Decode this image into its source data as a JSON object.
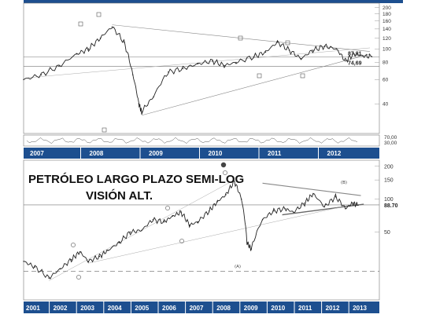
{
  "chart_data": [
    {
      "type": "line",
      "scale": "log",
      "title": "",
      "years": [
        "2007",
        "2008",
        "2009",
        "2010",
        "2011",
        "2012"
      ],
      "ylim": [
        25,
        210
      ],
      "y_ticks": [
        200,
        180,
        160,
        140,
        120,
        100,
        80,
        60,
        40
      ],
      "levels": [
        {
          "label": "87,81",
          "value": 87.81
        },
        {
          "label": "74,69",
          "value": 74.69
        }
      ],
      "oscillator_ticks": [
        "70,00",
        "30,00"
      ],
      "series": [
        {
          "values": [
            {
              "x": 2007.0,
              "y": 60
            },
            {
              "x": 2007.3,
              "y": 65
            },
            {
              "x": 2007.6,
              "y": 75
            },
            {
              "x": 2007.9,
              "y": 92
            },
            {
              "x": 2008.1,
              "y": 100
            },
            {
              "x": 2008.3,
              "y": 120
            },
            {
              "x": 2008.5,
              "y": 145
            },
            {
              "x": 2008.7,
              "y": 112
            },
            {
              "x": 2008.85,
              "y": 65
            },
            {
              "x": 2008.95,
              "y": 40
            },
            {
              "x": 2009.0,
              "y": 35
            },
            {
              "x": 2009.2,
              "y": 45
            },
            {
              "x": 2009.45,
              "y": 68
            },
            {
              "x": 2009.7,
              "y": 72
            },
            {
              "x": 2009.95,
              "y": 78
            },
            {
              "x": 2010.2,
              "y": 82
            },
            {
              "x": 2010.4,
              "y": 76
            },
            {
              "x": 2010.6,
              "y": 80
            },
            {
              "x": 2010.9,
              "y": 88
            },
            {
              "x": 2011.1,
              "y": 95
            },
            {
              "x": 2011.3,
              "y": 112
            },
            {
              "x": 2011.5,
              "y": 98
            },
            {
              "x": 2011.7,
              "y": 85
            },
            {
              "x": 2011.9,
              "y": 98
            },
            {
              "x": 2012.1,
              "y": 105
            },
            {
              "x": 2012.3,
              "y": 100
            },
            {
              "x": 2012.45,
              "y": 82
            },
            {
              "x": 2012.6,
              "y": 92
            },
            {
              "x": 2012.75,
              "y": 89
            },
            {
              "x": 2012.9,
              "y": 88
            }
          ]
        }
      ]
    },
    {
      "type": "line",
      "scale": "log",
      "title": "PETRÓLEO LARGO PLAZO SEMI-LOG",
      "subtitle": "VISIÓN ALT.",
      "years": [
        "2001",
        "2002",
        "2003",
        "2004",
        "2005",
        "2006",
        "2007",
        "2008",
        "2009",
        "2010",
        "2011",
        "2012",
        "2013"
      ],
      "ylim": [
        12,
        220
      ],
      "y_ticks": [
        200,
        150,
        100,
        50
      ],
      "level": {
        "label": "88.70",
        "value": 88.7
      },
      "wave_labels": [
        "(A)",
        "(B)"
      ],
      "series": [
        {
          "values": [
            {
              "x": 2001.0,
              "y": 27
            },
            {
              "x": 2001.4,
              "y": 24
            },
            {
              "x": 2001.9,
              "y": 19
            },
            {
              "x": 2002.3,
              "y": 23
            },
            {
              "x": 2002.7,
              "y": 28
            },
            {
              "x": 2003.0,
              "y": 33
            },
            {
              "x": 2003.3,
              "y": 27
            },
            {
              "x": 2003.7,
              "y": 30
            },
            {
              "x": 2004.0,
              "y": 34
            },
            {
              "x": 2004.4,
              "y": 40
            },
            {
              "x": 2004.8,
              "y": 50
            },
            {
              "x": 2005.2,
              "y": 52
            },
            {
              "x": 2005.6,
              "y": 65
            },
            {
              "x": 2006.0,
              "y": 62
            },
            {
              "x": 2006.3,
              "y": 70
            },
            {
              "x": 2006.6,
              "y": 76
            },
            {
              "x": 2006.9,
              "y": 58
            },
            {
              "x": 2007.2,
              "y": 62
            },
            {
              "x": 2007.6,
              "y": 78
            },
            {
              "x": 2007.9,
              "y": 95
            },
            {
              "x": 2008.2,
              "y": 110
            },
            {
              "x": 2008.5,
              "y": 145
            },
            {
              "x": 2008.75,
              "y": 100
            },
            {
              "x": 2008.95,
              "y": 40
            },
            {
              "x": 2009.1,
              "y": 35
            },
            {
              "x": 2009.5,
              "y": 65
            },
            {
              "x": 2009.9,
              "y": 78
            },
            {
              "x": 2010.3,
              "y": 82
            },
            {
              "x": 2010.6,
              "y": 76
            },
            {
              "x": 2011.0,
              "y": 92
            },
            {
              "x": 2011.3,
              "y": 112
            },
            {
              "x": 2011.7,
              "y": 85
            },
            {
              "x": 2012.1,
              "y": 105
            },
            {
              "x": 2012.45,
              "y": 82
            },
            {
              "x": 2012.7,
              "y": 92
            },
            {
              "x": 2012.9,
              "y": 88
            }
          ]
        }
      ]
    }
  ]
}
